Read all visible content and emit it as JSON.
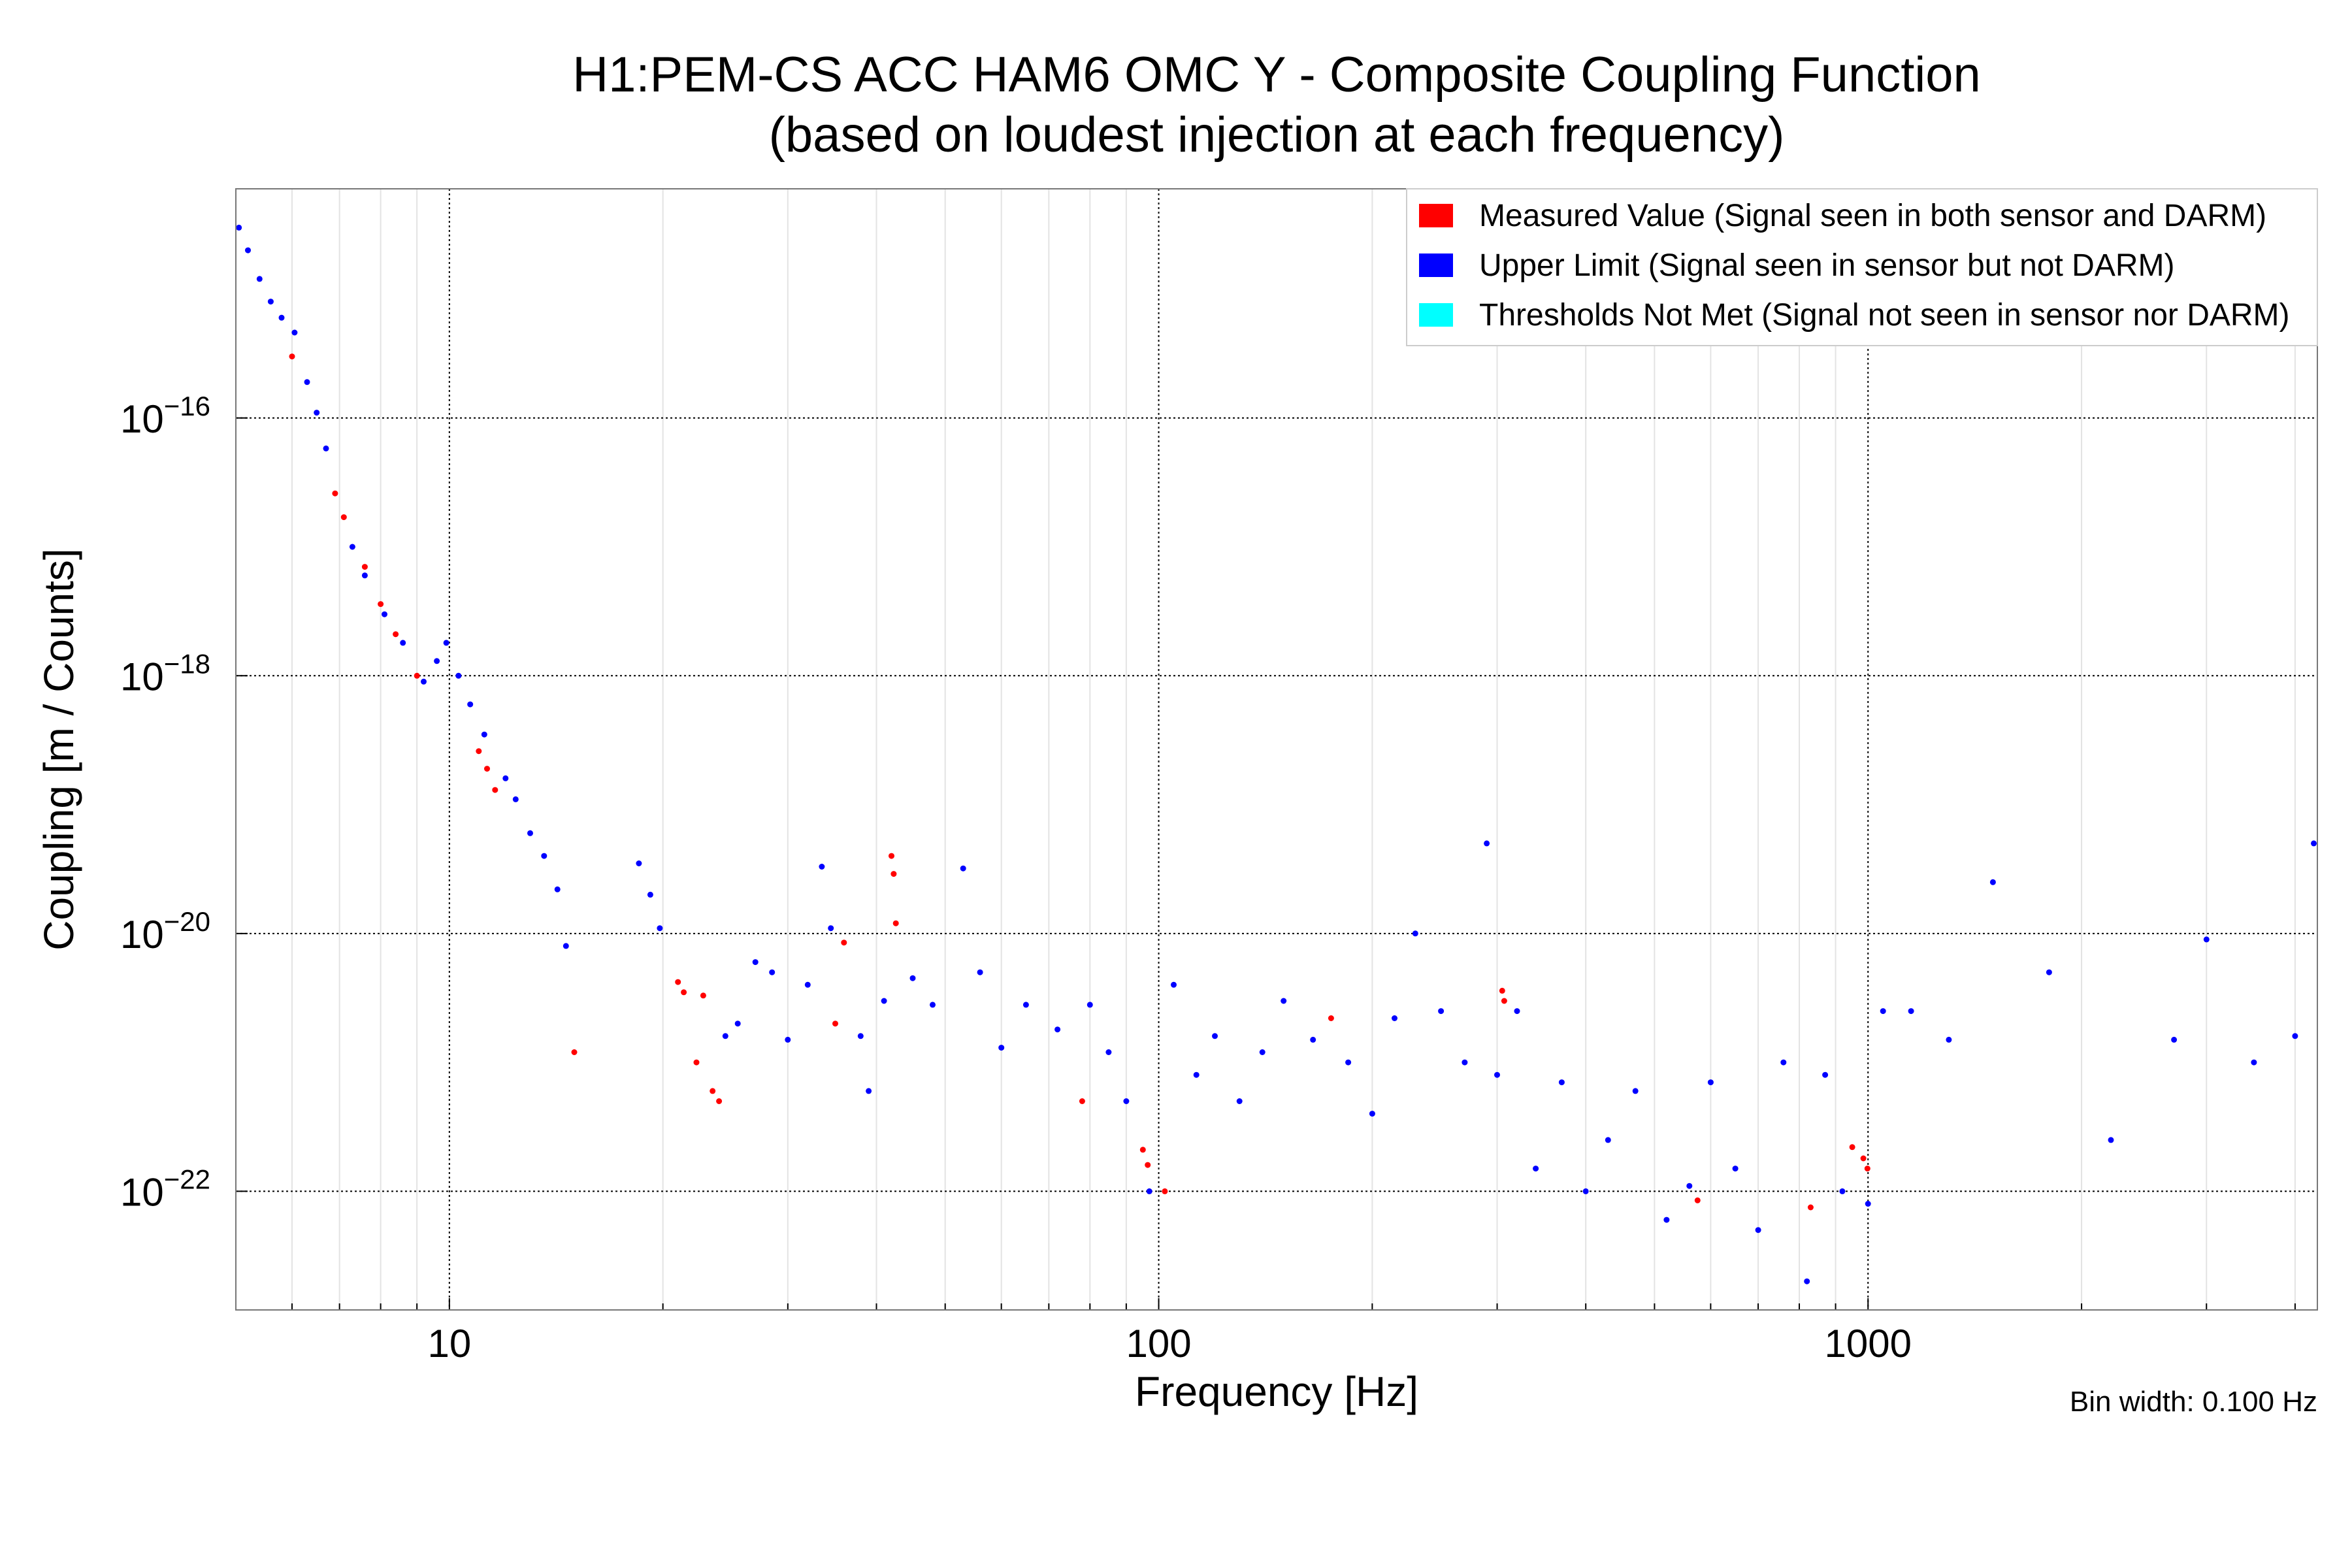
{
  "chart_data": {
    "type": "scatter",
    "title": "H1:PEM-CS ACC HAM6 OMC Y - Composite Coupling Function",
    "subtitle": "(based on loudest injection at each frequency)",
    "xlabel": "Frequency [Hz]",
    "ylabel": "Coupling [m / Counts]",
    "xscale": "log",
    "yscale": "log",
    "xlim": [
      5,
      4300
    ],
    "ylim": [
      1.2e-23,
      6e-15
    ],
    "grid": true,
    "legend_position": "top-right",
    "x_ticks": [
      {
        "value": 10,
        "label": "10"
      },
      {
        "value": 100,
        "label": "100"
      },
      {
        "value": 1000,
        "label": "1000"
      }
    ],
    "y_ticks": [
      {
        "value": 1e-16,
        "base": "10",
        "exp": "−16"
      },
      {
        "value": 1e-18,
        "base": "10",
        "exp": "−18"
      },
      {
        "value": 1e-20,
        "base": "10",
        "exp": "−20"
      },
      {
        "value": 1e-22,
        "base": "10",
        "exp": "−22"
      }
    ],
    "annotation": "Bin width: 0.100 Hz",
    "series": [
      {
        "name": "Measured Value (Signal seen in both sensor and DARM)",
        "color": "#ff0000",
        "points": [
          [
            6.0,
            3e-16
          ],
          [
            6.9,
            2.6e-17
          ],
          [
            7.1,
            1.7e-17
          ],
          [
            7.6,
            7e-18
          ],
          [
            8.0,
            3.6e-18
          ],
          [
            8.4,
            2.1e-18
          ],
          [
            9.0,
            1e-18
          ],
          [
            11.0,
            2.6e-19
          ],
          [
            11.3,
            1.9e-19
          ],
          [
            11.6,
            1.3e-19
          ],
          [
            15.0,
            1.2e-21
          ],
          [
            21.0,
            4.2e-21
          ],
          [
            21.4,
            3.5e-21
          ],
          [
            22.3,
            1e-21
          ],
          [
            22.8,
            3.3e-21
          ],
          [
            23.5,
            6e-22
          ],
          [
            24.0,
            5e-22
          ],
          [
            35.0,
            2e-21
          ],
          [
            36.0,
            8.5e-21
          ],
          [
            42.0,
            4e-20
          ],
          [
            42.3,
            2.9e-20
          ],
          [
            42.6,
            1.2e-20
          ],
          [
            78.0,
            5e-22
          ],
          [
            95.0,
            2.1e-22
          ],
          [
            96.5,
            1.6e-22
          ],
          [
            102.0,
            1e-22
          ],
          [
            175.0,
            2.2e-21
          ],
          [
            305.0,
            3.6e-21
          ],
          [
            307.0,
            3e-21
          ],
          [
            575.0,
            8.5e-23
          ],
          [
            830.0,
            7.5e-23
          ],
          [
            950.0,
            2.2e-22
          ],
          [
            985.0,
            1.8e-22
          ],
          [
            998.0,
            1.5e-22
          ]
        ]
      },
      {
        "name": "Upper Limit (Signal seen in sensor but not DARM)",
        "color": "#0000ff",
        "points": [
          [
            5.05,
            3e-15
          ],
          [
            5.2,
            2e-15
          ],
          [
            5.4,
            1.2e-15
          ],
          [
            5.6,
            8e-16
          ],
          [
            5.8,
            6e-16
          ],
          [
            6.05,
            4.6e-16
          ],
          [
            6.3,
            1.9e-16
          ],
          [
            6.5,
            1.1e-16
          ],
          [
            6.7,
            5.8e-17
          ],
          [
            7.3,
            1e-17
          ],
          [
            7.6,
            6e-18
          ],
          [
            8.1,
            3e-18
          ],
          [
            8.6,
            1.8e-18
          ],
          [
            9.2,
            9e-19
          ],
          [
            9.6,
            1.3e-18
          ],
          [
            9.9,
            1.8e-18
          ],
          [
            10.3,
            1e-18
          ],
          [
            10.7,
            6e-19
          ],
          [
            11.2,
            3.5e-19
          ],
          [
            12.0,
            1.6e-19
          ],
          [
            12.4,
            1.1e-19
          ],
          [
            13.0,
            6e-20
          ],
          [
            13.6,
            4e-20
          ],
          [
            14.2,
            2.2e-20
          ],
          [
            14.6,
            8e-21
          ],
          [
            18.5,
            3.5e-20
          ],
          [
            19.2,
            2e-20
          ],
          [
            19.8,
            1.1e-20
          ],
          [
            24.5,
            1.6e-21
          ],
          [
            25.5,
            2e-21
          ],
          [
            27.0,
            6e-21
          ],
          [
            28.5,
            5e-21
          ],
          [
            30.0,
            1.5e-21
          ],
          [
            32.0,
            4e-21
          ],
          [
            33.5,
            3.3e-20
          ],
          [
            34.5,
            1.1e-20
          ],
          [
            38.0,
            1.6e-21
          ],
          [
            39.0,
            6e-22
          ],
          [
            41.0,
            3e-21
          ],
          [
            45.0,
            4.5e-21
          ],
          [
            48.0,
            2.8e-21
          ],
          [
            53.0,
            3.2e-20
          ],
          [
            56.0,
            5e-21
          ],
          [
            60.0,
            1.3e-21
          ],
          [
            65.0,
            2.8e-21
          ],
          [
            72.0,
            1.8e-21
          ],
          [
            80.0,
            2.8e-21
          ],
          [
            85.0,
            1.2e-21
          ],
          [
            90.0,
            5e-22
          ],
          [
            97.0,
            1e-22
          ],
          [
            105.0,
            4e-21
          ],
          [
            113.0,
            8e-22
          ],
          [
            120.0,
            1.6e-21
          ],
          [
            130.0,
            5e-22
          ],
          [
            140.0,
            1.2e-21
          ],
          [
            150.0,
            3e-21
          ],
          [
            165.0,
            1.5e-21
          ],
          [
            185.0,
            1e-21
          ],
          [
            200.0,
            4e-22
          ],
          [
            215.0,
            2.2e-21
          ],
          [
            230.0,
            1e-20
          ],
          [
            250.0,
            2.5e-21
          ],
          [
            270.0,
            1e-21
          ],
          [
            290.0,
            5e-20
          ],
          [
            300.0,
            8e-22
          ],
          [
            320.0,
            2.5e-21
          ],
          [
            340.0,
            1.5e-22
          ],
          [
            370.0,
            7e-22
          ],
          [
            400.0,
            1e-22
          ],
          [
            430.0,
            2.5e-22
          ],
          [
            470.0,
            6e-22
          ],
          [
            520.0,
            6e-23
          ],
          [
            560.0,
            1.1e-22
          ],
          [
            600.0,
            7e-22
          ],
          [
            650.0,
            1.5e-22
          ],
          [
            700.0,
            5e-23
          ],
          [
            760.0,
            1e-21
          ],
          [
            820.0,
            2e-23
          ],
          [
            870.0,
            8e-22
          ],
          [
            920.0,
            1e-22
          ],
          [
            1000.0,
            8e-23
          ],
          [
            1050.0,
            2.5e-21
          ],
          [
            1150.0,
            2.5e-21
          ],
          [
            1300.0,
            1.5e-21
          ],
          [
            1500.0,
            2.5e-20
          ],
          [
            1800.0,
            5e-21
          ],
          [
            2200.0,
            2.5e-22
          ],
          [
            2700.0,
            1.5e-21
          ],
          [
            3000.0,
            9e-21
          ],
          [
            3500.0,
            1e-21
          ],
          [
            4000.0,
            1.6e-21
          ],
          [
            4250.0,
            5e-20
          ]
        ]
      }
    ],
    "legend_entries": [
      {
        "label": "Measured Value (Signal seen in both sensor and DARM)",
        "color": "#ff0000"
      },
      {
        "label": "Upper Limit (Signal seen in sensor but not DARM)",
        "color": "#0000ff"
      },
      {
        "label": "Thresholds Not Met (Signal not seen in sensor nor DARM)",
        "color": "#00ffff"
      }
    ]
  }
}
